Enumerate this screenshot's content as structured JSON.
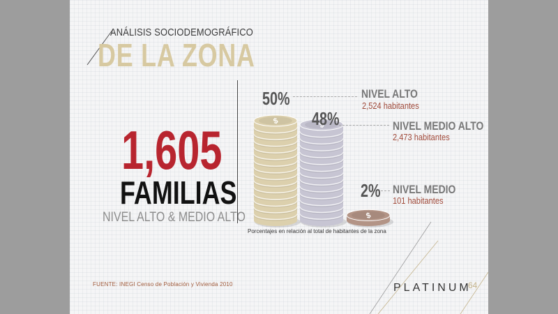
{
  "header": {
    "subtitle": "ANÁLISIS SOCIODEMOGRÁFICO",
    "title": "DE LA ZONA"
  },
  "summary": {
    "total": "1,605",
    "unit": "FAMILIAS",
    "description": "NIVEL ALTO & MEDIO ALTO"
  },
  "chart_data": {
    "type": "bar",
    "categories": [
      "NIVEL ALTO",
      "NIVEL MEDIO ALTO",
      "NIVEL MEDIO"
    ],
    "values": [
      50,
      48,
      2
    ],
    "value_labels": [
      "50%",
      "48%",
      "2%"
    ],
    "habitantes": [
      "2,524 habitantes",
      "2,473 habitantes",
      "101 habitantes"
    ],
    "caption": "Porcentajes en relación al total de habitantes de la zona",
    "colors": [
      "#dcd0ad",
      "#c7c5d3",
      "#b39486"
    ],
    "ylim": [
      0,
      50
    ]
  },
  "footer": {
    "source": "FUENTE:  INEGI Censo de Población y Vivienda 2010",
    "logo": "PLATINUM",
    "logo_number": "64"
  }
}
